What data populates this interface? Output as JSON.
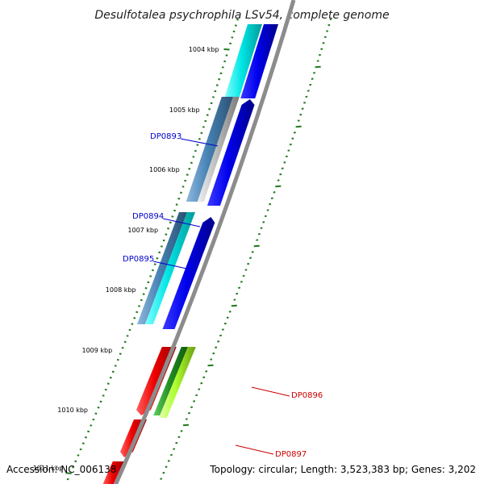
{
  "title": "Desulfotalea psychrophila LSv54, complete genome",
  "footer": {
    "accession": "Accession: NC_006138",
    "summary": "Topology: circular; Length: 3,523,383 bp; Genes: 3,202"
  },
  "tick_labels": [
    "1004 kbp",
    "1005 kbp",
    "1006 kbp",
    "1007 kbp",
    "1008 kbp",
    "1009 kbp",
    "1010 kbp",
    "1011 kbp"
  ],
  "gene_labels": [
    {
      "text": "DP0893",
      "color": "#0000cc"
    },
    {
      "text": "DP0894",
      "color": "#0000cc"
    },
    {
      "text": "DP0895",
      "color": "#0000cc"
    },
    {
      "text": "DP0896",
      "color": "#cc0000"
    },
    {
      "text": "DP0897",
      "color": "#cc0000"
    }
  ],
  "colors": {
    "backbone": "#8c8c8c",
    "tick": "#1f7a1f",
    "cyan": "#00e5e5",
    "blue": "#0000ee",
    "steel": "#4682b4",
    "gray": "#b4b4b4",
    "red": "#ee0000",
    "green": "#228b22",
    "lime": "#adff2f",
    "magenta": "#ff00aa"
  }
}
